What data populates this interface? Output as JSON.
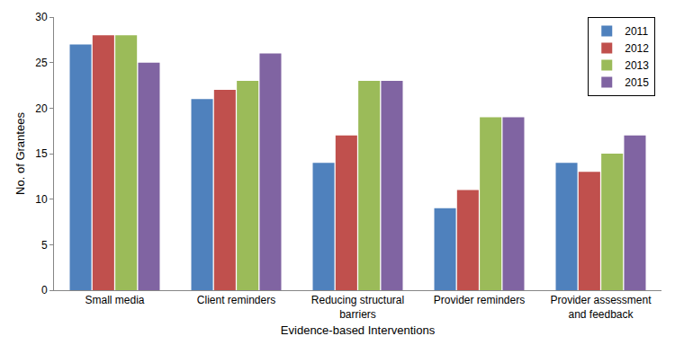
{
  "chart_data": {
    "type": "bar",
    "x_label": "Evidence-based Interventions",
    "y_label": "No. of Grantees",
    "categories": [
      "Small media",
      "Client reminders",
      "Reducing structural barriers",
      "Provider reminders",
      "Provider assessment and feedback"
    ],
    "series": [
      {
        "name": "2011",
        "color": "#4F81BD",
        "values": [
          27,
          21,
          14,
          9,
          14
        ]
      },
      {
        "name": "2012",
        "color": "#C0504D",
        "values": [
          28,
          22,
          17,
          11,
          13
        ]
      },
      {
        "name": "2013",
        "color": "#9BBB59",
        "values": [
          28,
          23,
          23,
          19,
          15
        ]
      },
      {
        "name": "2015",
        "color": "#8064A2",
        "values": [
          25,
          26,
          23,
          19,
          17
        ]
      }
    ],
    "ylim": [
      0,
      30
    ],
    "yticks": [
      0,
      5,
      10,
      15,
      20,
      25,
      30
    ],
    "grid": false,
    "legend": "top-right"
  }
}
